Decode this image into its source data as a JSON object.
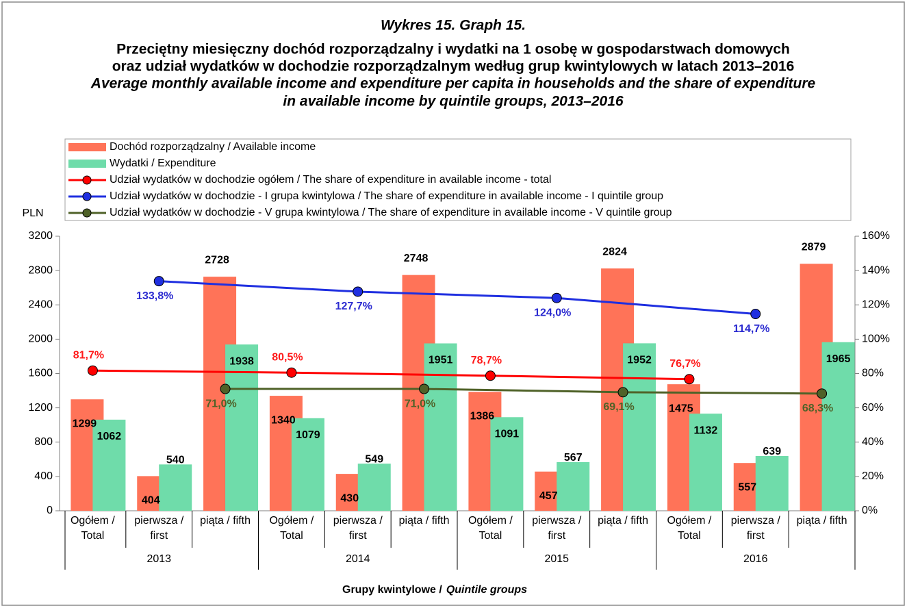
{
  "chart_data": {
    "type": "bar_line",
    "title": "Wykres 15. Graph 15.",
    "subtitle_pl": [
      "Przeciętny miesięczny dochód rozporządzalny i wydatki na 1 osobę w gospodarstwach domowych",
      "oraz udział wydatków w dochodzie rozporządzalnym według grup kwintylowych w latach 2013–2016"
    ],
    "subtitle_en": [
      "Average monthly available income and expenditure per capita in households and the share of expenditure",
      "in available income by quintile groups, 2013–2016"
    ],
    "ylabel": "PLN",
    "xlabel": "Grupy kwintylowe /",
    "xlabel_en": "Quintile groups",
    "categories": [
      "Ogółem / Total",
      "pierwsza / first",
      "piąta / fifth",
      "Ogółem / Total",
      "pierwsza / first",
      "piąta / fifth",
      "Ogółem / Total",
      "pierwsza / first",
      "piąta / fifth",
      "Ogółem / Total",
      "pierwsza / first",
      "piąta / fifth"
    ],
    "groups": [
      "2013",
      "2014",
      "2015",
      "2016"
    ],
    "ylim": [
      0,
      3200
    ],
    "yticks": [
      0,
      400,
      800,
      1200,
      1600,
      2000,
      2400,
      2800,
      3200
    ],
    "y2lim": [
      0,
      160
    ],
    "y2ticks": [
      {
        "value": 0,
        "label": "0%"
      },
      {
        "value": 20,
        "label": "20%"
      },
      {
        "value": 40,
        "label": "40%"
      },
      {
        "value": 60,
        "label": "60%"
      },
      {
        "value": 80,
        "label": "80%"
      },
      {
        "value": 100,
        "label": "100%"
      },
      {
        "value": 120,
        "label": "120%"
      },
      {
        "value": 140,
        "label": "140%"
      },
      {
        "value": 160,
        "label": "160%"
      }
    ],
    "connect_nulls": true,
    "series": [
      {
        "name": "Dochód rozporządzalny / Available income",
        "kind": "bar",
        "color": "#ff7358",
        "values": [
          1299,
          404,
          2728,
          1340,
          430,
          2748,
          1386,
          457,
          2824,
          1475,
          557,
          2879
        ]
      },
      {
        "name": "Wydatki / Expenditure",
        "kind": "bar",
        "color": "#6fdcaa",
        "values": [
          1062,
          540,
          1938,
          1079,
          549,
          1951,
          1091,
          567,
          1952,
          1132,
          639,
          1965
        ]
      },
      {
        "name": "Udział wydatków w dochodzie ogółem / The share of expenditure in available income - total",
        "kind": "line",
        "axis": "y2",
        "color": "#ff0000",
        "label_color": "#ff1a1a",
        "values": [
          81.7,
          null,
          null,
          80.5,
          null,
          null,
          78.7,
          null,
          null,
          76.7,
          null,
          null
        ],
        "value_labels": [
          "81,7%",
          null,
          null,
          "80,5%",
          null,
          null,
          "78,7%",
          null,
          null,
          "76,7%",
          null,
          null
        ]
      },
      {
        "name": "Udział wydatków w dochodzie - I grupa kwintylowa / The share of expenditure in available income - I quintile group",
        "kind": "line",
        "axis": "y2",
        "color": "#1f2fe0",
        "label_color": "#2a2ad0",
        "values": [
          null,
          133.8,
          null,
          null,
          127.7,
          null,
          null,
          124.0,
          null,
          null,
          114.7,
          null
        ],
        "value_labels": [
          null,
          "133,8%",
          null,
          null,
          "127,7%",
          null,
          null,
          "124,0%",
          null,
          null,
          "114,7%",
          null
        ]
      },
      {
        "name": "Udział wydatków w dochodzie - V grupa kwintylowa / The share of expenditure in available income - V quintile group",
        "kind": "line",
        "axis": "y2",
        "color": "#4f6228",
        "label_color": "#4f6228",
        "values": [
          null,
          null,
          71.0,
          null,
          null,
          71.0,
          null,
          null,
          69.1,
          null,
          null,
          68.3
        ],
        "value_labels": [
          null,
          null,
          "71,0%",
          null,
          null,
          "71,0%",
          null,
          null,
          "69,1%",
          null,
          null,
          "68,3%"
        ]
      }
    ]
  }
}
